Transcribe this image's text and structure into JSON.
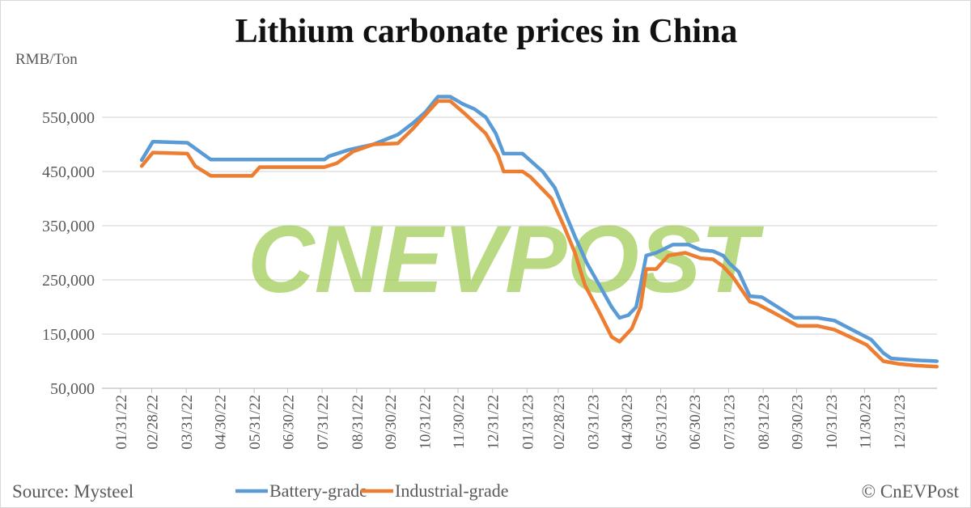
{
  "footer": {
    "source": "Source: Mysteel",
    "credit": "© CnEVPost"
  },
  "watermark": "CNEVPOST",
  "colors": {
    "battery": "#5B9BD5",
    "industrial": "#ED7D31",
    "watermark": "#9BCB4E",
    "grid": "#d9d9d9"
  },
  "chart_data": {
    "type": "line",
    "title": "Lithium carbonate prices in China",
    "ylabel": "RMB/Ton",
    "xlabel": "",
    "ylim": [
      50000,
      600000
    ],
    "xlim": [
      "2022-01-31",
      "2024-02-03"
    ],
    "yticks": [
      50000,
      150000,
      250000,
      350000,
      450000,
      550000
    ],
    "ytick_labels": [
      "50,000",
      "150,000",
      "250,000",
      "350,000",
      "450,000",
      "550,000"
    ],
    "xtick_dates": [
      "2022-01-31",
      "2022-02-28",
      "2022-03-31",
      "2022-04-30",
      "2022-05-31",
      "2022-06-30",
      "2022-07-31",
      "2022-08-31",
      "2022-09-30",
      "2022-10-31",
      "2022-11-30",
      "2022-12-31",
      "2023-01-31",
      "2023-02-28",
      "2023-03-31",
      "2023-04-30",
      "2023-05-31",
      "2023-06-30",
      "2023-07-31",
      "2023-08-31",
      "2023-09-30",
      "2023-10-31",
      "2023-11-30",
      "2023-12-31"
    ],
    "xtick_labels": [
      "01/31/22",
      "02/28/22",
      "03/31/22",
      "04/30/22",
      "05/31/22",
      "06/30/22",
      "07/31/22",
      "08/31/22",
      "09/30/22",
      "10/31/22",
      "11/30/22",
      "12/31/22",
      "01/31/23",
      "02/28/23",
      "03/31/23",
      "04/30/23",
      "05/31/23",
      "06/30/23",
      "07/31/23",
      "08/31/23",
      "09/30/23",
      "10/31/23",
      "11/30/23",
      "12/31/23"
    ],
    "grid": true,
    "legend": "bottom",
    "series": [
      {
        "name": "Battery-grade",
        "points": [
          [
            "2022-02-19",
            471000
          ],
          [
            "2022-03-01",
            505000
          ],
          [
            "2022-04-01",
            503000
          ],
          [
            "2022-04-22",
            472000
          ],
          [
            "2022-08-02",
            472000
          ],
          [
            "2022-08-06",
            478000
          ],
          [
            "2022-08-24",
            490000
          ],
          [
            "2022-09-15",
            500000
          ],
          [
            "2022-10-07",
            518000
          ],
          [
            "2022-10-21",
            540000
          ],
          [
            "2022-11-01",
            560000
          ],
          [
            "2022-11-12",
            588000
          ],
          [
            "2022-11-23",
            588000
          ],
          [
            "2022-12-04",
            575000
          ],
          [
            "2022-12-15",
            565000
          ],
          [
            "2022-12-25",
            550000
          ],
          [
            "2023-01-03",
            520000
          ],
          [
            "2023-01-10",
            483000
          ],
          [
            "2023-01-27",
            483000
          ],
          [
            "2023-02-03",
            470000
          ],
          [
            "2023-02-14",
            450000
          ],
          [
            "2023-02-25",
            420000
          ],
          [
            "2023-03-05",
            380000
          ],
          [
            "2023-03-15",
            330000
          ],
          [
            "2023-03-26",
            280000
          ],
          [
            "2023-04-06",
            240000
          ],
          [
            "2023-04-17",
            200000
          ],
          [
            "2023-04-24",
            180000
          ],
          [
            "2023-05-02",
            185000
          ],
          [
            "2023-05-09",
            200000
          ],
          [
            "2023-05-13",
            240000
          ],
          [
            "2023-05-18",
            295000
          ],
          [
            "2023-05-27",
            300000
          ],
          [
            "2023-06-11",
            315000
          ],
          [
            "2023-06-25",
            315000
          ],
          [
            "2023-07-06",
            305000
          ],
          [
            "2023-07-17",
            303000
          ],
          [
            "2023-07-26",
            295000
          ],
          [
            "2023-08-01",
            280000
          ],
          [
            "2023-08-09",
            265000
          ],
          [
            "2023-08-19",
            220000
          ],
          [
            "2023-08-30",
            218000
          ],
          [
            "2023-09-13",
            200000
          ],
          [
            "2023-09-28",
            180000
          ],
          [
            "2023-10-19",
            180000
          ],
          [
            "2023-11-03",
            175000
          ],
          [
            "2023-11-17",
            160000
          ],
          [
            "2023-12-06",
            140000
          ],
          [
            "2023-12-17",
            115000
          ],
          [
            "2023-12-24",
            105000
          ],
          [
            "2024-01-15",
            102000
          ],
          [
            "2024-02-03",
            100000
          ]
        ]
      },
      {
        "name": "Industrial-grade",
        "points": [
          [
            "2022-02-19",
            460000
          ],
          [
            "2022-03-01",
            485000
          ],
          [
            "2022-04-01",
            483000
          ],
          [
            "2022-04-08",
            460000
          ],
          [
            "2022-04-22",
            442000
          ],
          [
            "2022-05-29",
            442000
          ],
          [
            "2022-06-05",
            458000
          ],
          [
            "2022-08-02",
            458000
          ],
          [
            "2022-08-13",
            465000
          ],
          [
            "2022-08-28",
            487000
          ],
          [
            "2022-09-15",
            500000
          ],
          [
            "2022-10-07",
            502000
          ],
          [
            "2022-10-21",
            530000
          ],
          [
            "2022-11-12",
            580000
          ],
          [
            "2022-11-23",
            580000
          ],
          [
            "2022-12-07",
            555000
          ],
          [
            "2022-12-25",
            520000
          ],
          [
            "2023-01-05",
            480000
          ],
          [
            "2023-01-10",
            450000
          ],
          [
            "2023-01-27",
            450000
          ],
          [
            "2023-02-03",
            440000
          ],
          [
            "2023-02-22",
            400000
          ],
          [
            "2023-03-05",
            350000
          ],
          [
            "2023-03-15",
            300000
          ],
          [
            "2023-03-24",
            240000
          ],
          [
            "2023-04-06",
            190000
          ],
          [
            "2023-04-17",
            145000
          ],
          [
            "2023-04-24",
            136000
          ],
          [
            "2023-05-05",
            160000
          ],
          [
            "2023-05-13",
            200000
          ],
          [
            "2023-05-18",
            270000
          ],
          [
            "2023-05-27",
            270000
          ],
          [
            "2023-06-07",
            295000
          ],
          [
            "2023-06-22",
            300000
          ],
          [
            "2023-07-06",
            290000
          ],
          [
            "2023-07-17",
            288000
          ],
          [
            "2023-07-26",
            275000
          ],
          [
            "2023-08-04",
            255000
          ],
          [
            "2023-08-19",
            210000
          ],
          [
            "2023-08-26",
            205000
          ],
          [
            "2023-09-09",
            190000
          ],
          [
            "2023-10-01",
            165000
          ],
          [
            "2023-10-19",
            165000
          ],
          [
            "2023-11-03",
            158000
          ],
          [
            "2023-11-17",
            145000
          ],
          [
            "2023-12-02",
            130000
          ],
          [
            "2023-12-17",
            100000
          ],
          [
            "2023-12-31",
            95000
          ],
          [
            "2024-01-15",
            92000
          ],
          [
            "2024-02-03",
            90000
          ]
        ]
      }
    ]
  }
}
